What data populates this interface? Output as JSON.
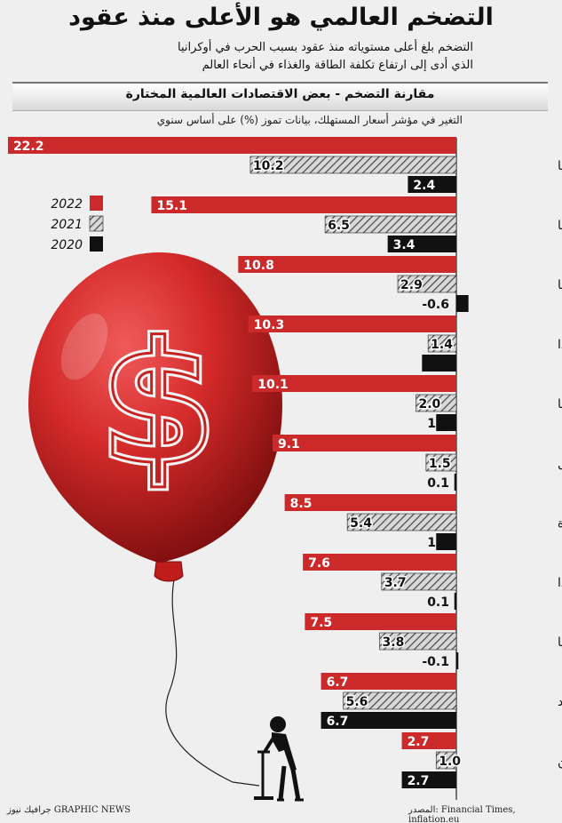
{
  "title": "التضخم العالمي هو الأعلى منذ عقود",
  "subtitle_lines": [
    "التضخم بلغ أعلى مستوياته منذ عقود بسبب الحرب في أوكرانيا",
    "الذي أدى إلى ارتفاع تكلفة الطاقة والغذاء في أنحاء العالم"
  ],
  "section_title": "مقارنة التضخم - بعض الاقتصادات العالمية المختارة",
  "axis_note": "التغير في مؤشر أسعار المستهلك، بيانات تموز (%) على أساس سنوي",
  "source": "المصدر: Financial Times, inflation.eu",
  "credit": "جرافيك نيوز GRAPHIC NEWS",
  "colors": {
    "y2022": "#cc2a2a",
    "y2021": "hatch",
    "y2020": "#111111"
  },
  "chart_data": {
    "type": "bar",
    "orientation": "horizontal",
    "categories": [
      "أوكرانيا",
      "روسيا",
      "إسبانيا",
      "هولندا",
      "بريطانيا",
      "البرتغال",
      "الولايات المتحدة",
      "كندا",
      "ألمانيا",
      "الهند",
      "الصين"
    ],
    "series": [
      {
        "name": "2022",
        "values": [
          22.2,
          15.1,
          10.8,
          10.3,
          10.1,
          9.1,
          8.5,
          7.6,
          7.5,
          6.7,
          2.7
        ],
        "labels": [
          "22.2",
          "15.1",
          "10.8",
          "10.3",
          "10.1",
          "9.1",
          "8.5",
          "7.6",
          "7.5",
          "6.7",
          "2.7"
        ]
      },
      {
        "name": "2021",
        "values": [
          10.2,
          6.5,
          2.9,
          1.4,
          2.0,
          1.5,
          5.4,
          3.7,
          3.8,
          5.6,
          1.0
        ],
        "labels": [
          "10.2",
          "6.5",
          "2.9",
          "1.4",
          "2.0",
          "1.5",
          "5.4",
          "3.7",
          "3.8",
          "5.6",
          "1.0"
        ]
      },
      {
        "name": "2020",
        "values": [
          2.4,
          3.4,
          -0.6,
          1.7,
          1.0,
          0.1,
          1.0,
          0.1,
          -0.1,
          6.7,
          2.7
        ],
        "labels": [
          "2.4",
          "3.4",
          "-0.6",
          "1.7",
          "1.0",
          "0.1",
          "1.0",
          "0.1",
          "-0.1",
          "6.7",
          "2.7"
        ]
      }
    ],
    "legend": [
      "2022",
      "2021",
      "2020"
    ],
    "legend_placement": "left"
  }
}
